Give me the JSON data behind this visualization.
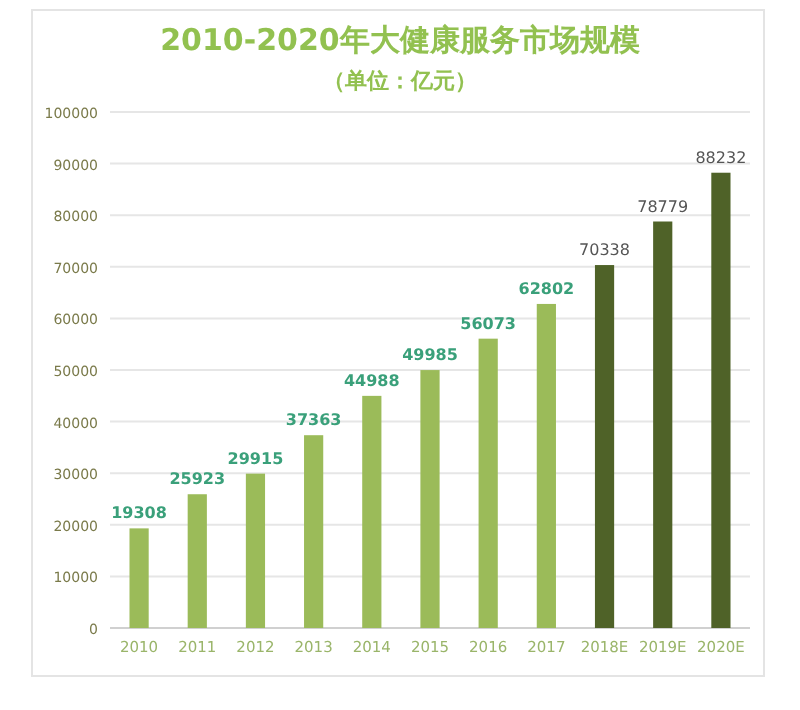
{
  "chart_data": {
    "type": "bar",
    "title": "2010-2020年大健康服务市场规模",
    "subtitle": "（单位：亿元）",
    "categories": [
      "2010",
      "2011",
      "2012",
      "2013",
      "2014",
      "2015",
      "2016",
      "2017",
      "2018E",
      "2019E",
      "2020E"
    ],
    "values": [
      19308,
      25923,
      29915,
      37363,
      44988,
      49985,
      56073,
      62802,
      70338,
      78779,
      88232
    ],
    "colors": [
      "#9bbb59",
      "#9bbb59",
      "#9bbb59",
      "#9bbb59",
      "#9bbb59",
      "#9bbb59",
      "#9bbb59",
      "#9bbb59",
      "#4f6228",
      "#4f6228",
      "#4f6228"
    ],
    "ylim": [
      0,
      100000
    ],
    "yticks": [
      0,
      10000,
      20000,
      30000,
      40000,
      50000,
      60000,
      70000,
      80000,
      90000,
      100000
    ],
    "grid": "y",
    "data_labels": true
  }
}
